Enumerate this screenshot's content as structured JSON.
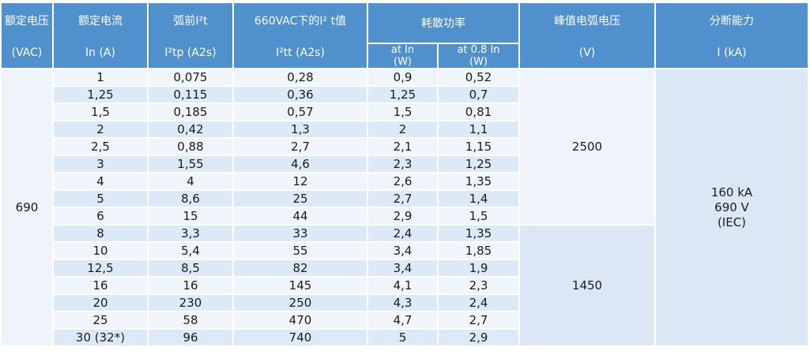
{
  "colors": {
    "header_blue": "#5090cd",
    "row_light": "#f0f5fb",
    "row_stripe": "#dce9f6",
    "merged_light": "#eff4fa",
    "merged_blue": "#dbe7f4",
    "header_text": "#ffffff",
    "body_text": "#1b1b1b"
  },
  "table": {
    "headers": {
      "col_voltage": {
        "line1": "额定电压",
        "line2": "(VAC)"
      },
      "col_current": {
        "line1": "额定电流",
        "line2": "In (A)"
      },
      "col_prearc": {
        "line1": "弧前I²t",
        "line2": "I²tp (A2s)"
      },
      "col_i2t_660": {
        "line1": "660VAC下的I² t值",
        "line2": "I²tt (A2s)"
      },
      "col_power": {
        "label": "耗散功率",
        "sub1_line1": "at  In",
        "sub1_line2": "(W)",
        "sub2_line1": "at 0.8  In",
        "sub2_line2": "(W)"
      },
      "col_peak_arc": {
        "line1": "峰值电弧电压",
        "line2": "(V)"
      },
      "col_breaking": {
        "line1": "分断能力",
        "line2": "I (kA)"
      }
    },
    "rated_voltage": "690",
    "breaking_capacity": [
      "160 kA",
      "690 V",
      "(IEC)"
    ],
    "groups": [
      {
        "peak_arc_voltage": "2500",
        "rows": [
          {
            "in": "1",
            "i2tp": "0,075",
            "i2tt": "0,28",
            "p_in": "0,9",
            "p_08in": "0,52"
          },
          {
            "in": "1,25",
            "i2tp": "0,115",
            "i2tt": "0,36",
            "p_in": "1,25",
            "p_08in": "0,7"
          },
          {
            "in": "1,5",
            "i2tp": "0,185",
            "i2tt": "0,57",
            "p_in": "1,5",
            "p_08in": "0,81"
          },
          {
            "in": "2",
            "i2tp": "0,42",
            "i2tt": "1,3",
            "p_in": "2",
            "p_08in": "1,1"
          },
          {
            "in": "2,5",
            "i2tp": "0,88",
            "i2tt": "2,7",
            "p_in": "2,1",
            "p_08in": "1,15"
          },
          {
            "in": "3",
            "i2tp": "1,55",
            "i2tt": "4,6",
            "p_in": "2,3",
            "p_08in": "1,25"
          },
          {
            "in": "4",
            "i2tp": "4",
            "i2tt": "12",
            "p_in": "2,6",
            "p_08in": "1,35"
          },
          {
            "in": "5",
            "i2tp": "8,6",
            "i2tt": "25",
            "p_in": "2,7",
            "p_08in": "1,4"
          },
          {
            "in": "6",
            "i2tp": "15",
            "i2tt": "44",
            "p_in": "2,9",
            "p_08in": "1,5"
          }
        ]
      },
      {
        "peak_arc_voltage": "1450",
        "rows": [
          {
            "in": "8",
            "i2tp": "3,3",
            "i2tt": "33",
            "p_in": "2,4",
            "p_08in": "1,35"
          },
          {
            "in": "10",
            "i2tp": "5,4",
            "i2tt": "55",
            "p_in": "3,4",
            "p_08in": "1,85"
          },
          {
            "in": "12,5",
            "i2tp": "8,5",
            "i2tt": "82",
            "p_in": "3,4",
            "p_08in": "1,9"
          },
          {
            "in": "16",
            "i2tp": "16",
            "i2tt": "145",
            "p_in": "4,1",
            "p_08in": "2,3"
          },
          {
            "in": "20",
            "i2tp": "230",
            "i2tt": "250",
            "p_in": "4,3",
            "p_08in": "2,4"
          },
          {
            "in": "25",
            "i2tp": "58",
            "i2tt": "470",
            "p_in": "4,7",
            "p_08in": "2,7"
          },
          {
            "in": "30 (32*)",
            "i2tp": "96",
            "i2tt": "740",
            "p_in": "5",
            "p_08in": "2,9"
          }
        ]
      }
    ]
  }
}
